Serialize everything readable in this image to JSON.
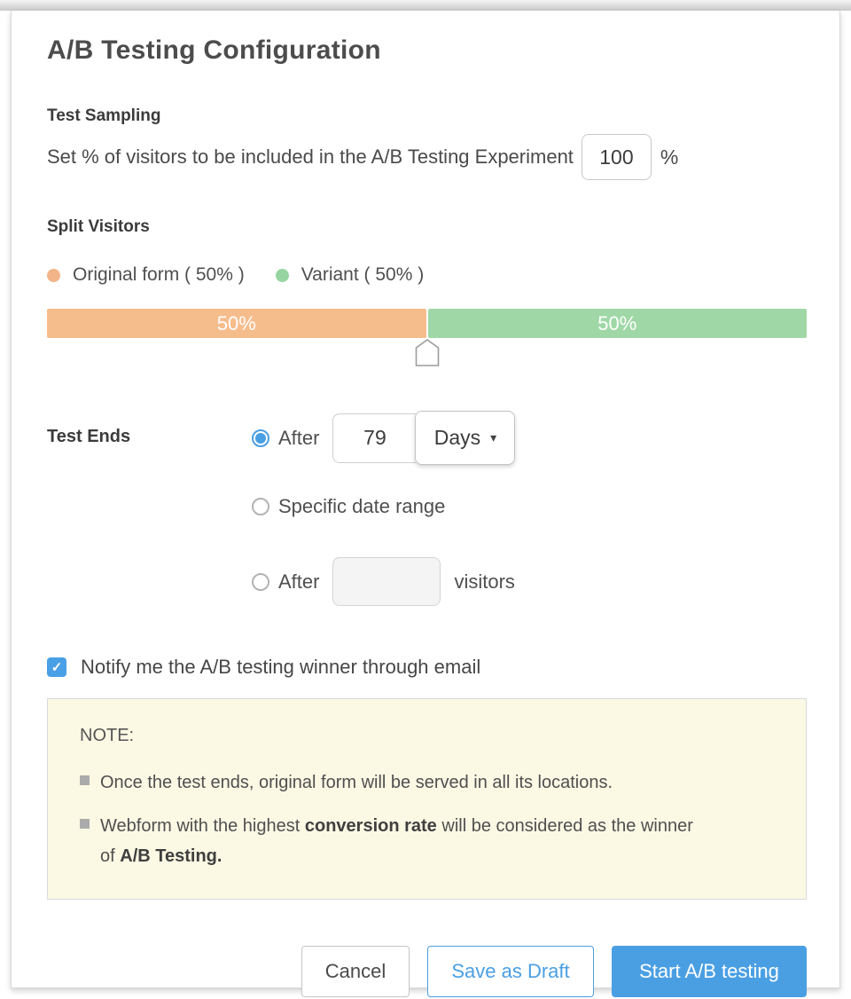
{
  "page": {
    "title": "A/B Testing Configuration"
  },
  "colors": {
    "accent_blue": "#4a9fe3",
    "original_orange": "#f6bd8c",
    "variant_green": "#9fd8a6",
    "note_background": "#fbf8e4"
  },
  "icons": {
    "caret_down": "▾",
    "check": "✓"
  },
  "test_sampling": {
    "heading": "Test Sampling",
    "description": "Set % of visitors to be included in the A/B Testing Experiment",
    "percent_value": "100",
    "percent_suffix": "%"
  },
  "split_visitors": {
    "heading": "Split Visitors",
    "legend": [
      {
        "label": "Original form ( 50% )"
      },
      {
        "label": "Variant ( 50% )"
      }
    ],
    "bar": {
      "left_percent": 50,
      "right_percent": 50,
      "left_label": "50%",
      "right_label": "50%"
    }
  },
  "test_ends": {
    "heading": "Test Ends",
    "option_after_days": {
      "label": "After",
      "selected": true,
      "value": "79",
      "unit": "Days"
    },
    "option_date_range": {
      "label": "Specific date range",
      "selected": false
    },
    "option_after_visitors": {
      "label": "After",
      "selected": false,
      "value": "",
      "suffix": "visitors"
    }
  },
  "notify": {
    "label": "Notify me the A/B testing winner through email",
    "checked": true
  },
  "note": {
    "heading": "NOTE:",
    "items": [
      {
        "parts": [
          {
            "text": "Once the test ends, original form will be served in all its locations.",
            "bold": false
          }
        ]
      },
      {
        "parts": [
          {
            "text": "Webform with the highest ",
            "bold": false
          },
          {
            "text": "conversion rate",
            "bold": true
          },
          {
            "text": " will be considered as the winner of ",
            "bold": false
          },
          {
            "text": "A/B Testing.",
            "bold": true
          }
        ]
      }
    ]
  },
  "actions": {
    "cancel": "Cancel",
    "save_draft": "Save as Draft",
    "start": "Start A/B testing"
  }
}
